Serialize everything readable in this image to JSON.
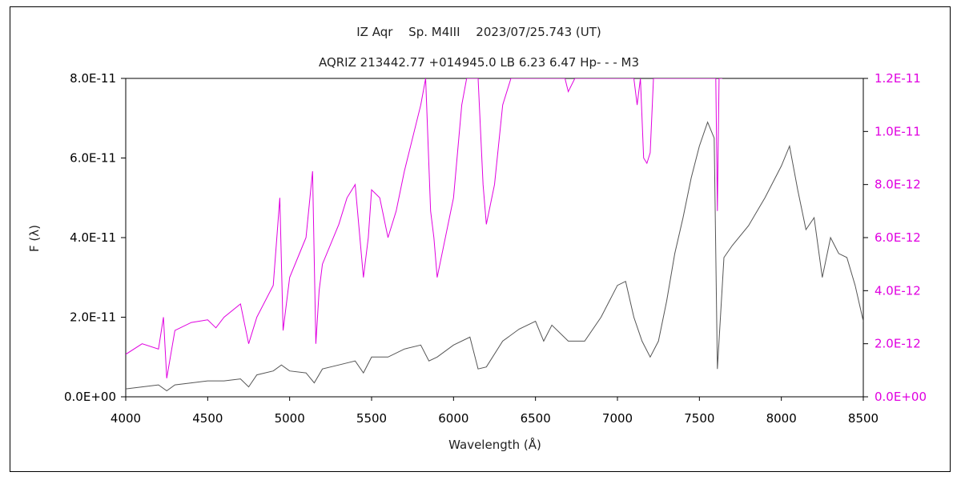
{
  "chart_data": {
    "type": "line",
    "title": "IZ Aqr　 Sp. M4III　 2023/07/25.743 (UT)",
    "subtitle": "AQRIZ 213442.77 +014945.0 LB 6.23 6.47 Hp- - - M3",
    "xlabel": "Wavelength (Å)",
    "ylabel": "F (λ)",
    "xlim": [
      4000,
      8500
    ],
    "ylim_left": [
      0,
      8e-11
    ],
    "ylim_right": [
      0,
      1.2e-11
    ],
    "x_ticks": [
      "4000",
      "4500",
      "5000",
      "5500",
      "6000",
      "6500",
      "7000",
      "7500",
      "8000",
      "8500"
    ],
    "y_ticks_left": [
      "0.0E+00",
      "2.0E-11",
      "4.0E-11",
      "6.0E-11",
      "8.0E-11"
    ],
    "y_ticks_right": [
      "0.0E+00",
      "2.0E-12",
      "4.0E-12",
      "6.0E-12",
      "8.0E-12",
      "1.0E-11",
      "1.2E-11"
    ],
    "grid": false,
    "legend": "none",
    "series": [
      {
        "axis": "left",
        "color": "#555555",
        "x": [
          4000,
          4100,
          4200,
          4250,
          4300,
          4400,
          4500,
          4600,
          4700,
          4750,
          4800,
          4900,
          4950,
          5000,
          5100,
          5150,
          5200,
          5300,
          5400,
          5450,
          5500,
          5600,
          5700,
          5800,
          5850,
          5900,
          6000,
          6100,
          6150,
          6200,
          6300,
          6400,
          6500,
          6550,
          6600,
          6700,
          6800,
          6900,
          7000,
          7050,
          7100,
          7150,
          7200,
          7250,
          7300,
          7350,
          7400,
          7450,
          7500,
          7550,
          7590,
          7610,
          7650,
          7700,
          7800,
          7900,
          8000,
          8050,
          8100,
          8150,
          8200,
          8250,
          8300,
          8350,
          8400,
          8450,
          8500
        ],
        "y": [
          2e-12,
          2.5e-12,
          3e-12,
          1.5e-12,
          3e-12,
          3.5e-12,
          4e-12,
          4e-12,
          4.5e-12,
          2.5e-12,
          5.5e-12,
          6.5e-12,
          8e-12,
          6.5e-12,
          6e-12,
          3.5e-12,
          7e-12,
          8e-12,
          9e-12,
          6e-12,
          1e-11,
          1e-11,
          1.2e-11,
          1.3e-11,
          9e-12,
          1e-11,
          1.3e-11,
          1.5e-11,
          7e-12,
          7.5e-12,
          1.4e-11,
          1.7e-11,
          1.9e-11,
          1.4e-11,
          1.8e-11,
          1.4e-11,
          1.4e-11,
          2e-11,
          2.8e-11,
          2.9e-11,
          2e-11,
          1.4e-11,
          1e-11,
          1.4e-11,
          2.4e-11,
          3.6e-11,
          4.5e-11,
          5.5e-11,
          6.3e-11,
          6.9e-11,
          6.5e-11,
          7e-12,
          3.5e-11,
          3.8e-11,
          4.3e-11,
          5e-11,
          5.8e-11,
          6.3e-11,
          5.2e-11,
          4.2e-11,
          4.5e-11,
          3e-11,
          4e-11,
          3.6e-11,
          3.5e-11,
          2.8e-11,
          1.9e-11
        ]
      },
      {
        "axis": "right",
        "color": "#e000e0",
        "x": [
          4000,
          4100,
          4200,
          4230,
          4250,
          4300,
          4400,
          4500,
          4550,
          4600,
          4700,
          4750,
          4800,
          4900,
          4940,
          4960,
          5000,
          5100,
          5140,
          5160,
          5180,
          5200,
          5300,
          5350,
          5400,
          5450,
          5480,
          5500,
          5550,
          5600,
          5650,
          5700,
          5800,
          5830,
          5860,
          5880,
          5900,
          6000,
          6050,
          6080,
          6150,
          6180,
          6200,
          6250,
          6300,
          6350,
          6400,
          6500,
          6650,
          6680,
          6700,
          6740,
          7100,
          7120,
          7140,
          7160,
          7180,
          7200,
          7220,
          7300,
          7600,
          7610,
          7620,
          7630,
          7640
        ],
        "y": [
          1.6e-12,
          2e-12,
          1.8e-12,
          3e-12,
          7e-13,
          2.5e-12,
          2.8e-12,
          2.9e-12,
          2.6e-12,
          3e-12,
          3.5e-12,
          2e-12,
          3e-12,
          4.2e-12,
          7.5e-12,
          2.5e-12,
          4.5e-12,
          6e-12,
          8.5e-12,
          2e-12,
          4e-12,
          5e-12,
          6.5e-12,
          7.5e-12,
          8e-12,
          4.5e-12,
          6e-12,
          7.8e-12,
          7.5e-12,
          6e-12,
          7e-12,
          8.5e-12,
          1.1e-11,
          1.2e-11,
          7e-12,
          6e-12,
          4.5e-12,
          7.5e-12,
          1.1e-11,
          1.2e-11,
          1.2e-11,
          8e-12,
          6.5e-12,
          8e-12,
          1.1e-11,
          1.2e-11,
          1.2e-11,
          1.2e-11,
          1.2e-11,
          1.2e-11,
          1.15e-11,
          1.2e-11,
          1.2e-11,
          1.1e-11,
          1.2e-11,
          9e-12,
          8.8e-12,
          9.2e-12,
          1.2e-11,
          1.2e-11,
          1.2e-11,
          7e-12,
          1.2e-11,
          1.2e-11,
          1.2e-11
        ]
      }
    ]
  }
}
